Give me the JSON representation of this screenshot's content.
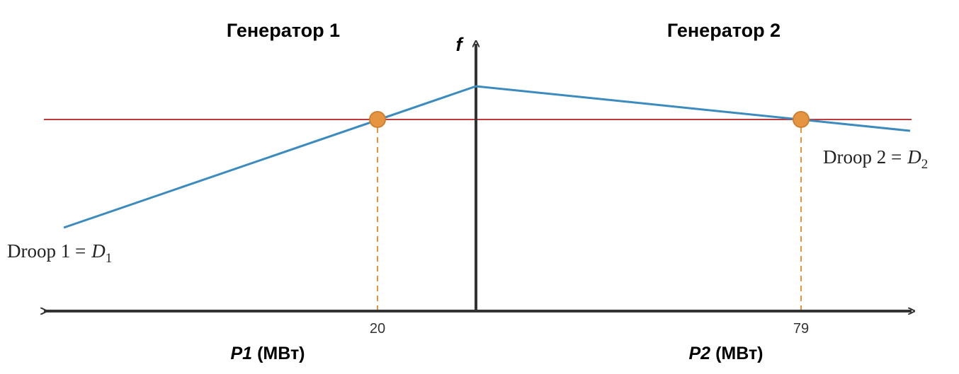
{
  "header": {
    "left": "Генератор 1",
    "right": "Генератор 2"
  },
  "axes": {
    "vertical": "f",
    "horizontal_left": {
      "symbol": "P1",
      "unit": "(МВт)"
    },
    "horizontal_right": {
      "symbol": "P2",
      "unit": "(МВт)"
    }
  },
  "operating_points": [
    {
      "label": "20"
    },
    {
      "label": "79"
    }
  ],
  "droop_labels": [
    {
      "text": "Droop 1 =",
      "symbol": "D",
      "subscript": "1"
    },
    {
      "text": "Droop 2 =",
      "symbol": "D",
      "subscript": "2"
    }
  ]
}
